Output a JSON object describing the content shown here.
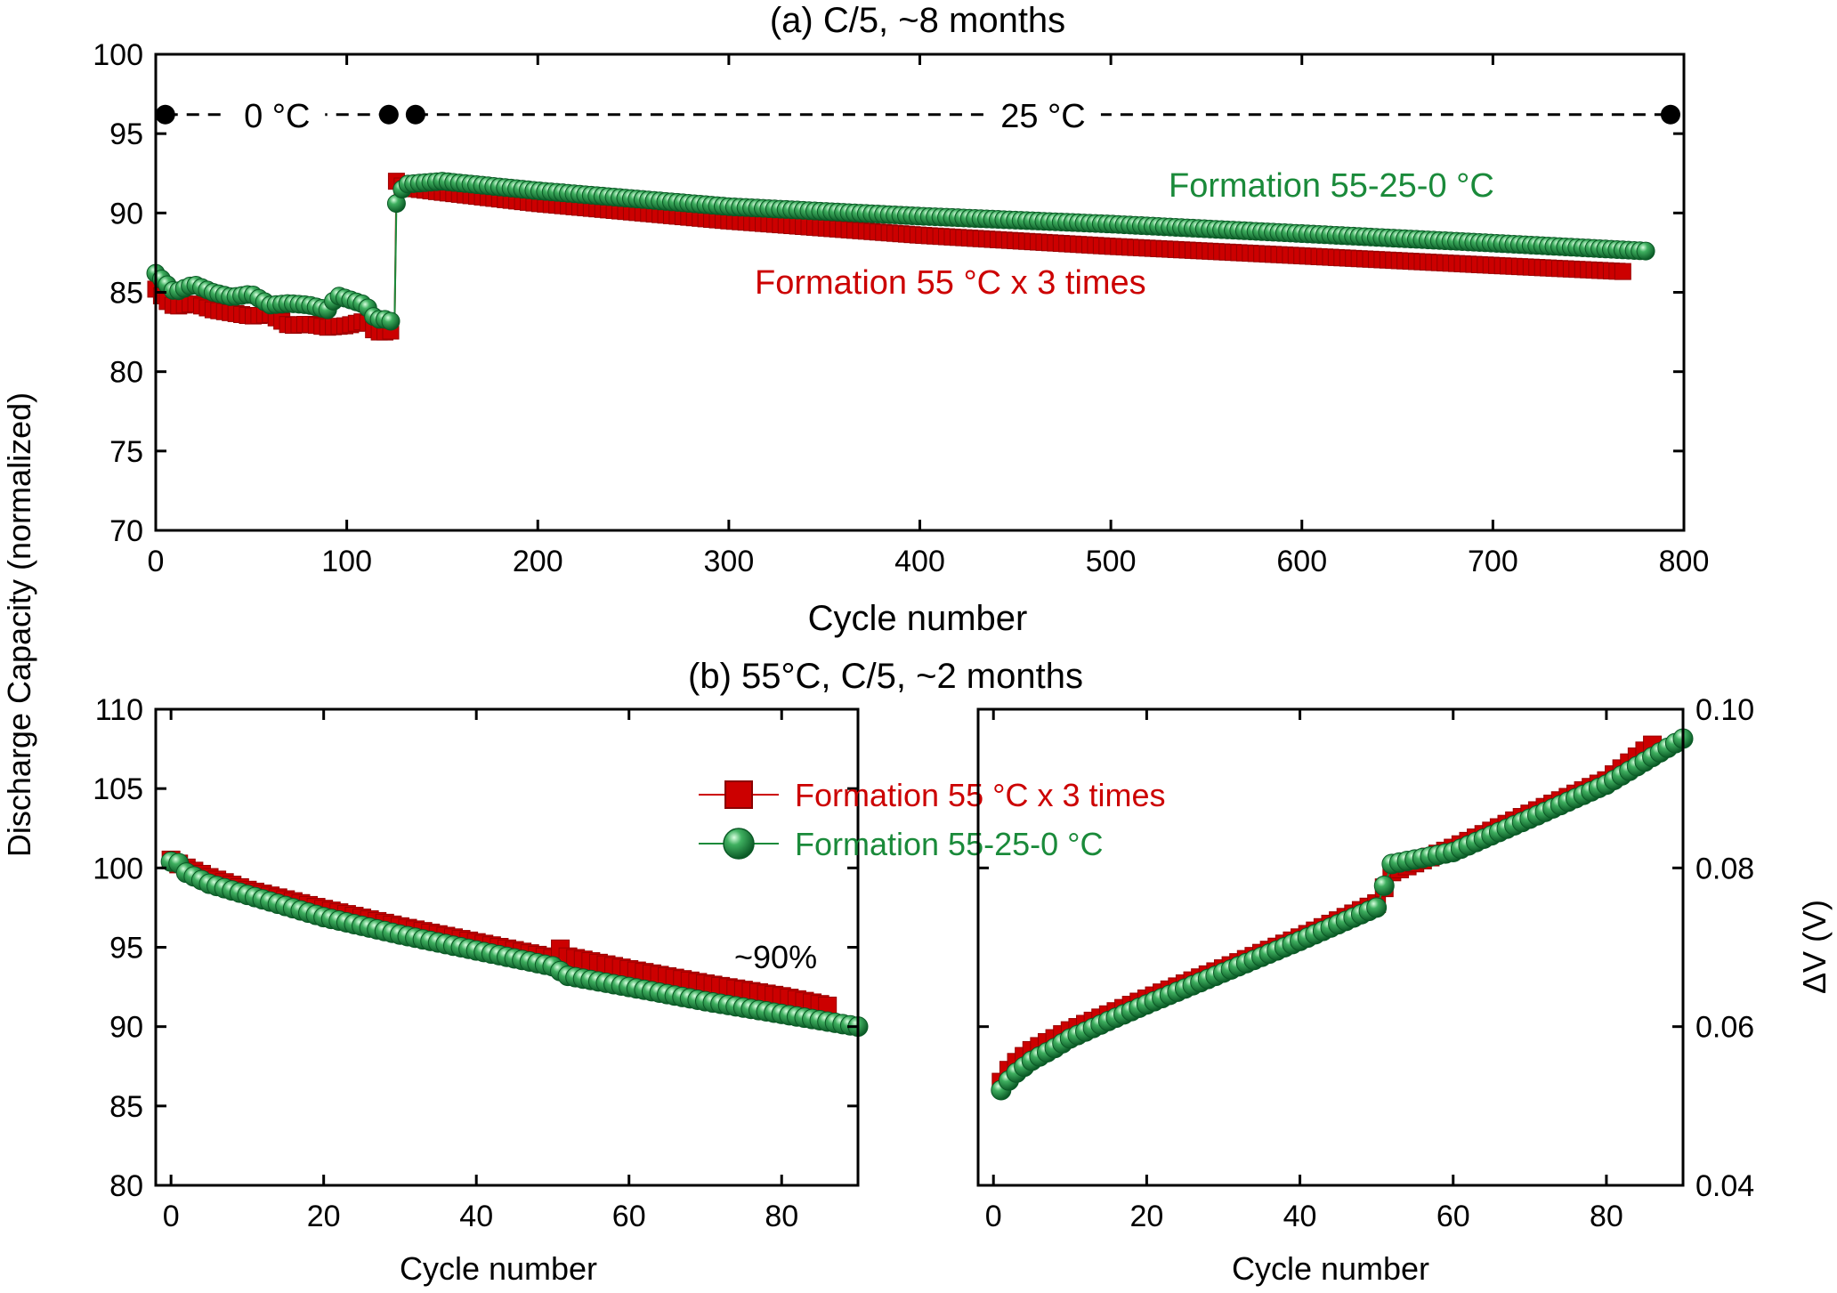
{
  "chart_data": [
    {
      "type": "scatter",
      "panel": "a",
      "title": "(a) C/5, ~8 months",
      "xlabel": "Cycle number",
      "ylabel": "Discharge Capacity (normalized)",
      "xlim": [
        0,
        800
      ],
      "ylim": [
        70,
        100
      ],
      "xticks": [
        0,
        100,
        200,
        300,
        400,
        500,
        600,
        700,
        800
      ],
      "yticks": [
        70,
        75,
        80,
        85,
        90,
        95,
        100
      ],
      "temperature_annotations": [
        {
          "label": "0 °C",
          "x_start": 5,
          "x_end": 122,
          "y": 96.2
        },
        {
          "label": "25 °C",
          "x_start": 136,
          "x_end": 793,
          "y": 96.2
        }
      ],
      "marker_x": [
        5,
        122,
        136,
        793
      ],
      "series": [
        {
          "name": "Formation 55 °C x 3 times",
          "color": "#cc0000",
          "marker": "square",
          "x": [
            0,
            5,
            10,
            20,
            30,
            40,
            50,
            60,
            70,
            80,
            90,
            100,
            110,
            115,
            120,
            125,
            126,
            130,
            150,
            200,
            300,
            400,
            500,
            600,
            700,
            770
          ],
          "y": [
            85.2,
            84.5,
            84.1,
            84.3,
            83.9,
            83.7,
            83.5,
            83.6,
            82.9,
            83.0,
            82.8,
            82.9,
            83.2,
            82.5,
            82.5,
            82.6,
            92.0,
            91.6,
            91.3,
            90.6,
            89.5,
            88.6,
            87.9,
            87.3,
            86.7,
            86.3
          ]
        },
        {
          "name": "Formation 55-25-0 °C",
          "color": "#1a8a3a",
          "marker": "sphere",
          "x": [
            0,
            5,
            10,
            20,
            30,
            40,
            50,
            60,
            70,
            80,
            90,
            95,
            100,
            110,
            115,
            120,
            125,
            126,
            130,
            150,
            200,
            300,
            400,
            500,
            600,
            700,
            780
          ],
          "y": [
            86.2,
            85.6,
            85.0,
            85.5,
            85.0,
            84.7,
            84.9,
            84.2,
            84.3,
            84.2,
            83.9,
            84.8,
            84.6,
            84.2,
            83.3,
            83.3,
            83.1,
            90.6,
            91.8,
            92.0,
            91.4,
            90.4,
            89.8,
            89.3,
            88.7,
            88.1,
            87.6
          ]
        }
      ],
      "annotations": [
        {
          "text": "Formation 55-25-0 °C",
          "color": "#1a8a3a"
        },
        {
          "text": "Formation 55 °C x 3 times",
          "color": "#cc0000"
        }
      ]
    },
    {
      "type": "scatter",
      "panel": "b-left",
      "title": "(b) 55°C, C/5, ~2 months",
      "xlabel": "Cycle number",
      "ylabel": "Discharge Capacity (normalized)",
      "xlim": [
        -2,
        90
      ],
      "ylim": [
        80,
        110
      ],
      "xticks": [
        0,
        20,
        40,
        60,
        80
      ],
      "yticks": [
        80,
        85,
        90,
        95,
        100,
        105,
        110
      ],
      "series": [
        {
          "name": "Formation 55 °C x 3 times",
          "color": "#cc0000",
          "marker": "square",
          "x": [
            0,
            2,
            5,
            10,
            20,
            30,
            40,
            50,
            51,
            52,
            60,
            70,
            80,
            86
          ],
          "y": [
            100.5,
            100.0,
            99.4,
            98.6,
            97.4,
            96.3,
            95.3,
            94.3,
            94.9,
            94.4,
            93.6,
            92.7,
            91.9,
            91.3
          ]
        },
        {
          "name": "Formation 55-25-0 °C",
          "color": "#1a8a3a",
          "marker": "sphere",
          "x": [
            0,
            1,
            2,
            5,
            10,
            20,
            30,
            40,
            50,
            51,
            52,
            60,
            70,
            80,
            90
          ],
          "y": [
            100.4,
            100.3,
            99.7,
            99.0,
            98.3,
            96.9,
            95.8,
            94.8,
            93.8,
            93.5,
            93.2,
            92.5,
            91.6,
            90.8,
            90.0
          ]
        }
      ],
      "annotations": [
        {
          "text": "~90%"
        }
      ],
      "legend": {
        "placement": "top-right",
        "entries": [
          "Formation 55 °C x 3 times",
          "Formation 55-25-0 °C"
        ]
      }
    },
    {
      "type": "scatter",
      "panel": "b-right",
      "xlabel": "Cycle number",
      "ylabel": "ΔV (V)",
      "xlim": [
        -2,
        90
      ],
      "ylim": [
        0.04,
        0.1
      ],
      "xticks": [
        0,
        20,
        40,
        60,
        80
      ],
      "yticks": [
        0.04,
        0.06,
        0.08,
        0.1
      ],
      "ytick_labels": [
        "0.04",
        "0.06",
        "0.08",
        "0.10"
      ],
      "series": [
        {
          "name": "Formation 55 °C x 3 times",
          "color": "#cc0000",
          "marker": "square",
          "x": [
            1,
            2,
            3,
            5,
            8,
            10,
            15,
            20,
            30,
            40,
            50,
            52,
            60,
            70,
            80,
            86
          ],
          "y": [
            0.053,
            0.0545,
            0.0555,
            0.057,
            0.0585,
            0.0595,
            0.0615,
            0.0635,
            0.0673,
            0.0712,
            0.0755,
            0.0795,
            0.0825,
            0.0868,
            0.091,
            0.0955
          ]
        },
        {
          "name": "Formation 55-25-0 °C",
          "color": "#1a8a3a",
          "marker": "sphere",
          "x": [
            1,
            2,
            3,
            5,
            8,
            10,
            15,
            20,
            30,
            40,
            50,
            52,
            60,
            70,
            80,
            90
          ],
          "y": [
            0.052,
            0.0532,
            0.0542,
            0.0557,
            0.0573,
            0.0585,
            0.0607,
            0.0628,
            0.0668,
            0.0708,
            0.075,
            0.0805,
            0.082,
            0.0862,
            0.0905,
            0.0963
          ]
        }
      ]
    }
  ],
  "shared": {
    "ylabel": "Discharge Capacity (normalized)"
  }
}
